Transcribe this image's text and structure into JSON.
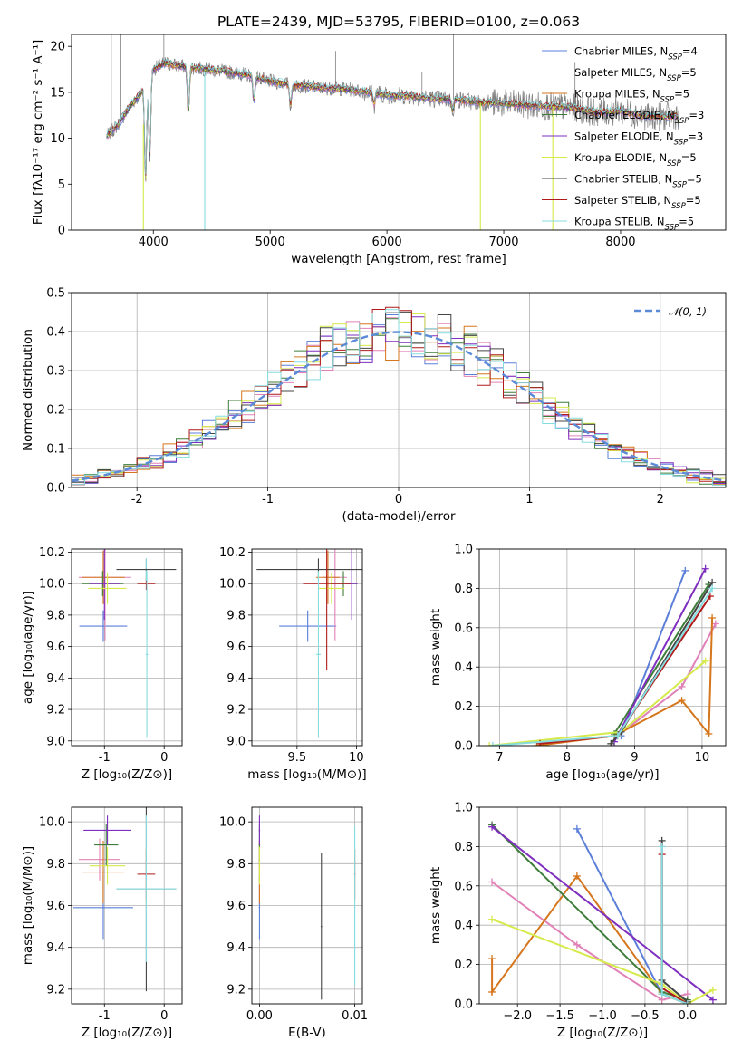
{
  "figure": {
    "title": "PLATE=2439, MJD=53795, FIBERID=0100, z=0.063"
  },
  "colors": {
    "Chabrier MILES": "#5b7fd8",
    "Salpeter MILES": "#e082b7",
    "Kroupa MILES": "#d5761d",
    "Chabrier ELODIE": "#3e7d3a",
    "Salpeter ELODIE": "#7f2fbf",
    "Kroupa ELODIE": "#d6ea4c",
    "Chabrier STELIB": "#444444",
    "Salpeter STELIB": "#b01a1a",
    "Kroupa STELIB": "#85dde0",
    "data": "#808080",
    "normal": "#5b8ad6",
    "grid": "#b0b0b0"
  },
  "chart_data": [
    {
      "id": "spectrum",
      "type": "line",
      "xlabel": "wavelength [Angstrom, rest frame]",
      "ylabel": "Flux [fλ10⁻¹⁷ erg cm⁻² s⁻¹ A⁻¹]",
      "xlim": [
        3300,
        8900
      ],
      "ylim": [
        0,
        21.3
      ],
      "xticks": [
        4000,
        5000,
        6000,
        7000,
        8000
      ],
      "yticks": [
        0,
        5,
        10,
        15,
        20
      ],
      "grid": false,
      "legend_position": "top-right",
      "legend": [
        {
          "label": "Chabrier MILES, N",
          "sub": "SSP",
          "suffix": "=4"
        },
        {
          "label": "Salpeter MILES, N",
          "sub": "SSP",
          "suffix": "=5"
        },
        {
          "label": "Kroupa MILES, N",
          "sub": "SSP",
          "suffix": "=5"
        },
        {
          "label": "Chabrier ELODIE, N",
          "sub": "SSP",
          "suffix": "=3"
        },
        {
          "label": "Salpeter ELODIE, N",
          "sub": "SSP",
          "suffix": "=3"
        },
        {
          "label": "Kroupa ELODIE, N",
          "sub": "SSP",
          "suffix": "=5"
        },
        {
          "label": "Chabrier STELIB, N",
          "sub": "SSP",
          "suffix": "=5"
        },
        {
          "label": "Salpeter STELIB, N",
          "sub": "SSP",
          "suffix": "=5"
        },
        {
          "label": "Kroupa STELIB, N",
          "sub": "SSP",
          "suffix": "=5"
        }
      ],
      "continuum": {
        "x": [
          3600,
          3700,
          3800,
          3900,
          4000,
          4100,
          4200,
          4400,
          4600,
          4800,
          5000,
          5200,
          5400,
          5600,
          5800,
          6000,
          6200,
          6400,
          6600,
          6800,
          7000,
          7200,
          7400,
          7600,
          7800,
          8000,
          8200,
          8400,
          8500
        ],
        "y": [
          10.2,
          11.5,
          13.5,
          15.0,
          17.5,
          18.2,
          17.9,
          17.6,
          17.3,
          16.9,
          16.2,
          15.8,
          15.5,
          15.4,
          15.1,
          14.7,
          14.6,
          14.3,
          14.2,
          13.9,
          13.8,
          13.6,
          13.5,
          13.3,
          12.8,
          13.0,
          12.4,
          12.3,
          12.6
        ]
      },
      "absorption_features": [
        {
          "x": 3934,
          "y": 4.8
        },
        {
          "x": 3969,
          "y": 7.5
        },
        {
          "x": 4300,
          "y": 12.5
        },
        {
          "x": 4861,
          "y": 14.0
        },
        {
          "x": 5175,
          "y": 13.5
        },
        {
          "x": 5890,
          "y": 13.6
        },
        {
          "x": 6563,
          "y": 13.0
        },
        {
          "x": 8500,
          "y": 11.5
        }
      ],
      "bad_pixels": [
        {
          "x": 3915,
          "y_from": 11.5,
          "y_to": 0
        },
        {
          "x": 4440,
          "y_from": 17.2,
          "y_to": 0
        },
        {
          "x": 6800,
          "y_from": 13.8,
          "y_to": 0
        },
        {
          "x": 7420,
          "y_from": 13.5,
          "y_to": 0
        }
      ],
      "spikes": [
        {
          "x": 3640,
          "y": 21.3
        },
        {
          "x": 3722,
          "y": 21.3
        },
        {
          "x": 4090,
          "y": 21.3
        },
        {
          "x": 6570,
          "y": 21.3
        },
        {
          "x": 5560,
          "y": 19.5
        },
        {
          "x": 6300,
          "y": 17.2
        },
        {
          "x": 7610,
          "y": 18.3
        }
      ]
    },
    {
      "id": "residuals",
      "type": "histogram",
      "xlabel": "(data-model)/error",
      "ylabel": "Normed distribution",
      "xlim": [
        -2.5,
        2.5
      ],
      "ylim": [
        0,
        0.5
      ],
      "xticks": [
        -2,
        -1,
        0,
        1,
        2
      ],
      "yticks": [
        0.0,
        0.1,
        0.2,
        0.3,
        0.4,
        0.5
      ],
      "grid": true,
      "bin_width": 0.1,
      "bin_start": -2.5,
      "legend": "𝒩(0, 1)",
      "normal_curve": {
        "mu": 0,
        "sigma": 1
      }
    },
    {
      "id": "age-vs-Z",
      "type": "scatter",
      "xlabel": "Z [log₁₀(Z/Z⊙)]",
      "ylabel": "age  [log₁₀(age/yr)]",
      "xlim": [
        -1.55,
        0.3
      ],
      "ylim": [
        8.97,
        10.22
      ],
      "xticks": [
        -1,
        0
      ],
      "yticks": [
        9.0,
        9.2,
        9.4,
        9.6,
        9.8,
        10.0,
        10.2
      ],
      "grid": true,
      "points": [
        {
          "series": "Chabrier MILES",
          "x": -1.02,
          "xerr": 0.4,
          "y": 9.73,
          "yerr": 0.1
        },
        {
          "series": "Salpeter MILES",
          "x": -0.99,
          "xerr": 0.44,
          "y": 10.04,
          "yerr": 0.4
        },
        {
          "series": "Kroupa MILES",
          "x": -1.02,
          "xerr": 0.36,
          "y": 10.04,
          "yerr": 0.17
        },
        {
          "series": "Chabrier ELODIE",
          "x": -1.03,
          "xerr": 0.35,
          "y": 10.0,
          "yerr": 0.08
        },
        {
          "series": "Salpeter ELODIE",
          "x": -1.0,
          "xerr": 0.25,
          "y": 10.0,
          "yerr": 0.23
        },
        {
          "series": "Kroupa ELODIE",
          "x": -0.95,
          "xerr": 0.32,
          "y": 9.97,
          "yerr": 0.1
        },
        {
          "series": "Chabrier STELIB",
          "x": -0.3,
          "xerr": 0.02,
          "y": 10.09,
          "yerr": 0.07
        },
        {
          "series": "Salpeter STELIB",
          "x": -0.3,
          "xerr": 0.15,
          "y": 10.0,
          "yerr": 0.04
        },
        {
          "series": "Kroupa STELIB",
          "x": -0.3,
          "xerr": 0.02,
          "y": 10.09,
          "yerr": 0.07
        },
        {
          "series": "Chabrier STELIB",
          "x": -0.3,
          "xerr": 0.5,
          "y": 10.09,
          "yerr": 0.0
        },
        {
          "series": "Kroupa STELIB",
          "x": -0.29,
          "xerr": 0.02,
          "y": 9.55,
          "yerr": 0.53
        }
      ]
    },
    {
      "id": "age-vs-mass",
      "type": "scatter",
      "xlabel": "mass [log₁₀(M/M⊙)]",
      "ylabel": "",
      "xlim": [
        9.12,
        10.05
      ],
      "ylim": [
        8.97,
        10.22
      ],
      "xticks": [
        9.5,
        10.0
      ],
      "yticks": [
        9.0,
        9.2,
        9.4,
        9.6,
        9.8,
        10.0,
        10.2
      ],
      "grid": true,
      "points": [
        {
          "series": "Chabrier MILES",
          "x": 9.59,
          "xerr": 0.24,
          "y": 9.73,
          "yerr": 0.1
        },
        {
          "series": "Salpeter MILES",
          "x": 9.82,
          "xerr": 0.1,
          "y": 10.04,
          "yerr": 0.4
        },
        {
          "series": "Kroupa MILES",
          "x": 9.76,
          "xerr": 0.1,
          "y": 10.04,
          "yerr": 0.17
        },
        {
          "series": "Chabrier ELODIE",
          "x": 9.89,
          "xerr": 0.11,
          "y": 10.0,
          "yerr": 0.08
        },
        {
          "series": "Salpeter ELODIE",
          "x": 9.96,
          "xerr": 0.05,
          "y": 10.0,
          "yerr": 0.23
        },
        {
          "series": "Kroupa ELODIE",
          "x": 9.79,
          "xerr": 0.11,
          "y": 9.97,
          "yerr": 0.1
        },
        {
          "series": "Chabrier STELIB",
          "x": 9.68,
          "xerr": 0.52,
          "y": 10.09,
          "yerr": 0.07
        },
        {
          "series": "Salpeter STELIB",
          "x": 9.75,
          "xerr": 0.2,
          "y": 10.0,
          "yerr": 0.55
        },
        {
          "series": "Kroupa STELIB",
          "x": 9.68,
          "xerr": 0.02,
          "y": 9.55,
          "yerr": 0.53
        }
      ]
    },
    {
      "id": "weight-vs-age",
      "type": "line",
      "xlabel": "age  [log₁₀(age/yr)]",
      "ylabel": "mass weight",
      "xlim": [
        6.7,
        10.35
      ],
      "ylim": [
        0,
        1.0
      ],
      "xticks": [
        7,
        8,
        9,
        10
      ],
      "yticks": [
        0.0,
        0.2,
        0.4,
        0.6,
        0.8,
        1.0
      ],
      "grid": true,
      "series": [
        {
          "name": "Chabrier MILES",
          "x": [
            8.8,
            9.75
          ],
          "y": [
            0.05,
            0.89
          ]
        },
        {
          "name": "Salpeter MILES",
          "x": [
            8.75,
            9.7,
            10.2
          ],
          "y": [
            0.05,
            0.3,
            0.62
          ]
        },
        {
          "name": "Kroupa MILES",
          "x": [
            7.55,
            8.7,
            9.7,
            10.1,
            10.15
          ],
          "y": [
            0.0,
            0.05,
            0.23,
            0.06,
            0.65
          ]
        },
        {
          "name": "Chabrier ELODIE",
          "x": [
            8.7,
            10.1
          ],
          "y": [
            0.06,
            0.82
          ]
        },
        {
          "name": "Salpeter ELODIE",
          "x": [
            8.7,
            10.05
          ],
          "y": [
            0.02,
            0.9
          ]
        },
        {
          "name": "Kroupa ELODIE",
          "x": [
            6.85,
            8.8,
            10.05
          ],
          "y": [
            0.0,
            0.07,
            0.43
          ]
        },
        {
          "name": "Chabrier STELIB",
          "x": [
            8.65,
            8.8,
            10.15
          ],
          "y": [
            0.01,
            0.07,
            0.83
          ]
        },
        {
          "name": "Salpeter STELIB",
          "x": [
            7.6,
            8.75,
            10.12
          ],
          "y": [
            0.01,
            0.05,
            0.76
          ]
        },
        {
          "name": "Kroupa STELIB",
          "x": [
            6.9,
            8.75,
            10.15
          ],
          "y": [
            0.0,
            0.05,
            0.8
          ]
        }
      ]
    },
    {
      "id": "mass-vs-Z",
      "type": "scatter",
      "xlabel": "Z [log₁₀(Z/Z⊙)]",
      "ylabel": "mass [log₁₀(M/M⊙)]",
      "xlim": [
        -1.55,
        0.3
      ],
      "ylim": [
        9.13,
        10.07
      ],
      "xticks": [
        -1,
        0
      ],
      "yticks": [
        9.2,
        9.4,
        9.6,
        9.8,
        10.0
      ],
      "grid": true,
      "points": [
        {
          "series": "Chabrier MILES",
          "x": -1.02,
          "xerr": 0.5,
          "y": 9.59,
          "yerr": 0.15
        },
        {
          "series": "Salpeter MILES",
          "x": -1.08,
          "xerr": 0.35,
          "y": 9.82,
          "yerr": 0.1
        },
        {
          "series": "Kroupa MILES",
          "x": -1.02,
          "xerr": 0.35,
          "y": 9.76,
          "yerr": 0.15
        },
        {
          "series": "Chabrier ELODIE",
          "x": -0.97,
          "xerr": 0.2,
          "y": 9.89,
          "yerr": 0.1
        },
        {
          "series": "Salpeter ELODIE",
          "x": -0.95,
          "xerr": 0.4,
          "y": 9.96,
          "yerr": 0.07
        },
        {
          "series": "Kroupa ELODIE",
          "x": -0.95,
          "xerr": 0.3,
          "y": 9.79,
          "yerr": 0.09
        },
        {
          "series": "Chabrier STELIB",
          "x": -0.3,
          "xerr": 0.5,
          "y": 9.68,
          "yerr": 0.49
        },
        {
          "series": "Salpeter STELIB",
          "x": -0.3,
          "xerr": 0.15,
          "y": 9.75,
          "yerr": 0.12
        },
        {
          "series": "Kroupa STELIB",
          "x": -0.3,
          "xerr": 0.5,
          "y": 9.68,
          "yerr": 0.35
        }
      ]
    },
    {
      "id": "mass-vs-EBV",
      "type": "scatter",
      "xlabel": "E(B-V)",
      "ylabel": "",
      "xlim": [
        -0.0008,
        0.0108
      ],
      "ylim": [
        9.13,
        10.07
      ],
      "xticks": [
        0.0,
        0.01
      ],
      "xticklabels": [
        "0.00",
        "0.01"
      ],
      "yticks": [
        9.2,
        9.4,
        9.6,
        9.8,
        10.0
      ],
      "grid": true,
      "points": [
        {
          "series": "Chabrier MILES",
          "x": 0.0,
          "y": 9.59,
          "yerr": 0.15
        },
        {
          "series": "Salpeter MILES",
          "x": 0.0,
          "y": 9.82,
          "yerr": 0.1
        },
        {
          "series": "Kroupa MILES",
          "x": 0.0,
          "y": 9.76,
          "yerr": 0.15
        },
        {
          "series": "Chabrier ELODIE",
          "x": 0.0,
          "y": 9.89,
          "yerr": 0.1
        },
        {
          "series": "Salpeter ELODIE",
          "x": 0.0,
          "y": 9.96,
          "yerr": 0.07
        },
        {
          "series": "Kroupa ELODIE",
          "x": 0.0,
          "y": 9.79,
          "yerr": 0.09
        },
        {
          "series": "Chabrier STELIB",
          "x": 0.0065,
          "y": 9.5,
          "yerr": 0.35
        },
        {
          "series": "Salpeter STELIB",
          "x": 0.01,
          "y": 9.75,
          "yerr": 0.12
        },
        {
          "series": "Kroupa STELIB",
          "x": 0.01,
          "y": 9.6,
          "yerr": 0.38
        }
      ]
    },
    {
      "id": "weight-vs-Z",
      "type": "line",
      "xlabel": "Z [log₁₀(Z/Z⊙)]",
      "ylabel": "mass weight",
      "xlim": [
        -2.45,
        0.45
      ],
      "ylim": [
        0,
        1.0
      ],
      "xticks": [
        -2.0,
        -1.5,
        -1.0,
        -0.5,
        0.0
      ],
      "xticklabels": [
        "−2.0",
        "−1.5",
        "−1.0",
        "−0.5",
        "0.0"
      ],
      "yticks": [
        0.0,
        0.2,
        0.4,
        0.6,
        0.8,
        1.0
      ],
      "grid": true,
      "series": [
        {
          "name": "Chabrier MILES",
          "x": [
            -1.3,
            -0.3,
            0.0
          ],
          "y": [
            0.89,
            0.05,
            0.0
          ]
        },
        {
          "name": "Salpeter MILES",
          "x": [
            -2.3,
            -1.3,
            -0.3,
            0.0
          ],
          "y": [
            0.62,
            0.3,
            0.02,
            0.05
          ]
        },
        {
          "name": "Kroupa MILES",
          "x": [
            -2.3,
            -2.3,
            -1.3,
            -0.3,
            0.0
          ],
          "y": [
            0.23,
            0.06,
            0.65,
            0.05,
            0.0
          ]
        },
        {
          "name": "Chabrier ELODIE",
          "x": [
            -2.3,
            -0.3,
            0.0
          ],
          "y": [
            0.91,
            0.06,
            0.02
          ]
        },
        {
          "name": "Salpeter ELODIE",
          "x": [
            -2.3,
            0.3
          ],
          "y": [
            0.9,
            0.02
          ]
        },
        {
          "name": "Kroupa ELODIE",
          "x": [
            -2.3,
            -0.3,
            0.0,
            0.3
          ],
          "y": [
            0.43,
            0.1,
            0.0,
            0.07
          ]
        },
        {
          "name": "Chabrier STELIB",
          "x": [
            -0.3,
            -0.3,
            0.0
          ],
          "y": [
            0.83,
            0.12,
            0.01
          ]
        },
        {
          "name": "Salpeter STELIB",
          "x": [
            -0.3,
            -0.3,
            0.0
          ],
          "y": [
            0.76,
            0.08,
            0.0
          ]
        },
        {
          "name": "Kroupa STELIB",
          "x": [
            -0.3,
            -0.3,
            0.0
          ],
          "y": [
            0.8,
            0.05,
            0.0
          ]
        }
      ]
    }
  ]
}
